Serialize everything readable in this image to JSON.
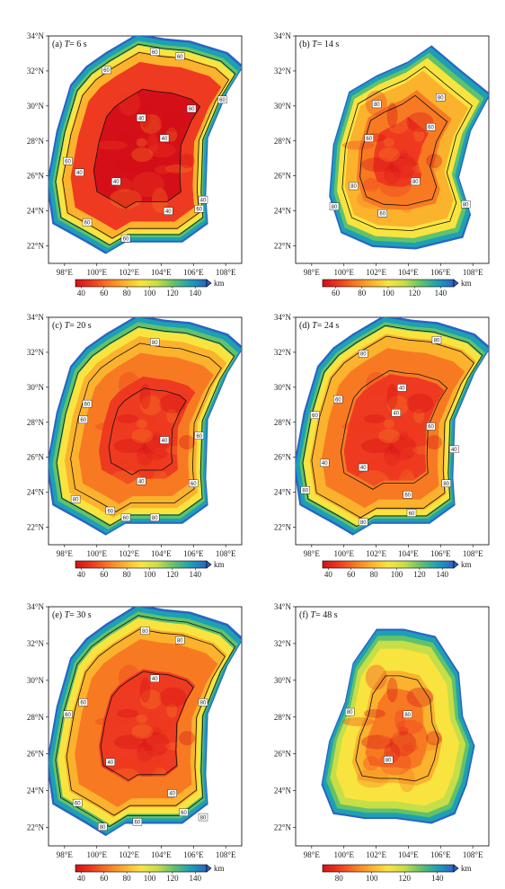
{
  "chart_data": [
    {
      "type": "heatmap",
      "panel": "(a)",
      "period": "6 s",
      "cbar_ticks": [
        "40",
        "60",
        "80",
        "100",
        "120",
        "140"
      ],
      "contour_labels": [
        "60",
        "60",
        "60",
        "60",
        "60",
        "40",
        "40",
        "40",
        "40",
        "40",
        "40",
        "60",
        "60",
        "60",
        "60"
      ]
    },
    {
      "type": "heatmap",
      "panel": "(b)",
      "period": "14 s",
      "cbar_ticks": [
        "60",
        "80",
        "100",
        "120",
        "140"
      ],
      "contour_labels": [
        "80",
        "80",
        "60",
        "60",
        "80",
        "80",
        "60",
        "80",
        "80"
      ]
    },
    {
      "type": "heatmap",
      "panel": "(c)",
      "period": "20 s",
      "cbar_ticks": [
        "40",
        "60",
        "80",
        "100",
        "120",
        "140"
      ],
      "contour_labels": [
        "80",
        "60",
        "60",
        "40",
        "60",
        "40",
        "60",
        "60",
        "80",
        "60",
        "80"
      ]
    },
    {
      "type": "heatmap",
      "panel": "(d)",
      "period": "24 s",
      "cbar_ticks": [
        "40",
        "60",
        "80",
        "100",
        "120",
        "140"
      ],
      "contour_labels": [
        "80",
        "60",
        "60",
        "80",
        "40",
        "40",
        "40",
        "40",
        "60",
        "80",
        "60",
        "80",
        "80",
        "60",
        "40"
      ]
    },
    {
      "type": "heatmap",
      "panel": "(e)",
      "period": "30 s",
      "cbar_ticks": [
        "40",
        "60",
        "80",
        "100",
        "120",
        "140"
      ],
      "contour_labels": [
        "80",
        "80",
        "60",
        "60",
        "80",
        "40",
        "40",
        "40",
        "60",
        "60",
        "80",
        "80",
        "60"
      ]
    },
    {
      "type": "heatmap",
      "panel": "(f)",
      "period": "48 s",
      "cbar_ticks": [
        "80",
        "100",
        "120",
        "140"
      ],
      "contour_labels": [
        "80",
        "80",
        "80"
      ]
    }
  ],
  "axes": {
    "x_ticks": [
      "98°E",
      "100°E",
      "102°E",
      "104°E",
      "106°E",
      "108°E"
    ],
    "y_ticks": [
      "22°N",
      "24°N",
      "26°N",
      "28°N",
      "30°N",
      "32°N",
      "34°N"
    ],
    "xlim": [
      97,
      109
    ],
    "ylim": [
      21,
      34
    ]
  },
  "colorbar": {
    "unit": "km",
    "colors": [
      "#d50f18",
      "#ee3a20",
      "#f77a22",
      "#fbb22d",
      "#f9e43f",
      "#c6de48",
      "#62c16b",
      "#1da0b4",
      "#2b63c4"
    ],
    "ramp_values": [
      40,
      50,
      60,
      70,
      80,
      90,
      100,
      110,
      120,
      130,
      140
    ]
  },
  "t_symbol": "T"
}
